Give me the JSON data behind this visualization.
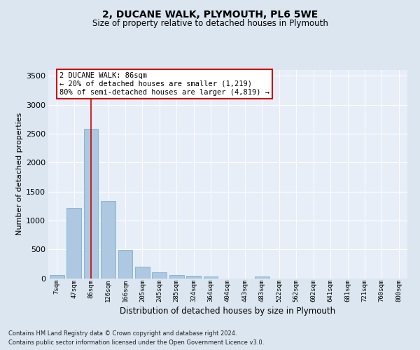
{
  "title1": "2, DUCANE WALK, PLYMOUTH, PL6 5WE",
  "title2": "Size of property relative to detached houses in Plymouth",
  "xlabel": "Distribution of detached houses by size in Plymouth",
  "ylabel": "Number of detached properties",
  "footnote1": "Contains HM Land Registry data © Crown copyright and database right 2024.",
  "footnote2": "Contains public sector information licensed under the Open Government Licence v3.0.",
  "bin_labels": [
    "7sqm",
    "47sqm",
    "86sqm",
    "126sqm",
    "166sqm",
    "205sqm",
    "245sqm",
    "285sqm",
    "324sqm",
    "364sqm",
    "404sqm",
    "443sqm",
    "483sqm",
    "522sqm",
    "562sqm",
    "602sqm",
    "641sqm",
    "681sqm",
    "721sqm",
    "760sqm",
    "800sqm"
  ],
  "bar_values": [
    50,
    1220,
    2580,
    1340,
    490,
    200,
    105,
    50,
    45,
    35,
    0,
    0,
    35,
    0,
    0,
    0,
    0,
    0,
    0,
    0,
    0
  ],
  "bar_color": "#adc8e0",
  "bar_edge_color": "#7aafd4",
  "vline_bin_index": 2,
  "ylim": [
    0,
    3600
  ],
  "yticks": [
    0,
    500,
    1000,
    1500,
    2000,
    2500,
    3000,
    3500
  ],
  "annotation_text": "2 DUCANE WALK: 86sqm\n← 20% of detached houses are smaller (1,219)\n80% of semi-detached houses are larger (4,819) →",
  "annotation_box_color": "#ffffff",
  "annotation_box_edge": "#cc0000",
  "vline_color": "#cc0000",
  "bg_color": "#dce6f0",
  "plot_bg_color": "#e8eef8",
  "grid_color": "#ffffff",
  "title1_fontsize": 10,
  "title2_fontsize": 8.5,
  "ylabel_fontsize": 8,
  "xlabel_fontsize": 8.5,
  "ytick_fontsize": 8,
  "xtick_fontsize": 6.5,
  "footnote_fontsize": 6,
  "ann_fontsize": 7.5
}
